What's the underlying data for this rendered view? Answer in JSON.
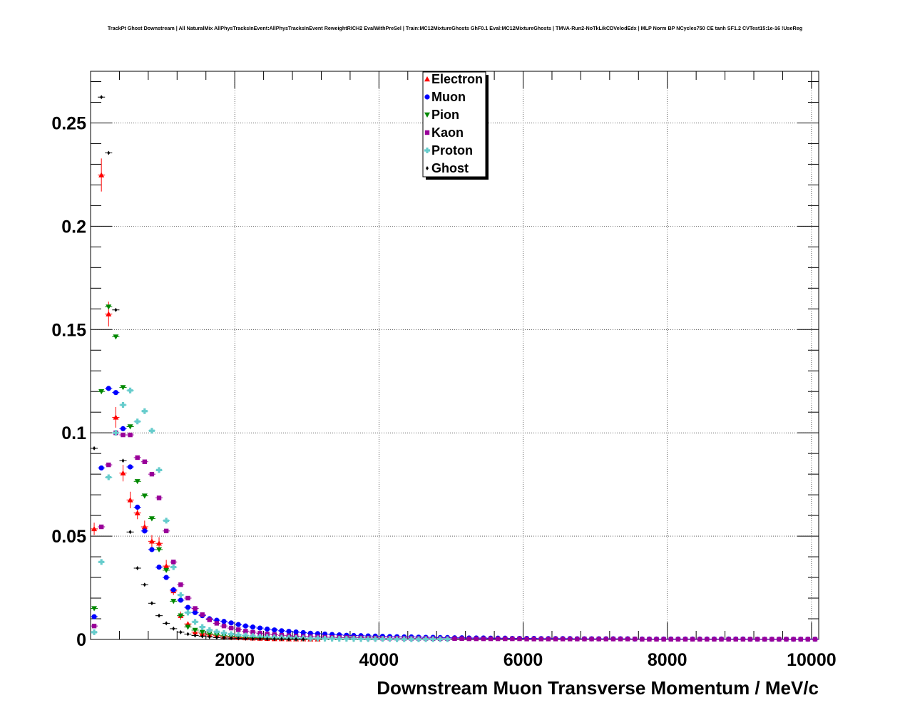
{
  "chart_data": {
    "type": "scatter",
    "title": "TrackPt Ghost Downstream | All NaturalMix AllPhysTracksInEvent:AllPhysTracksInEvent ReweightRICH2 EvalWithPreSel | Train:MC12MixtureGhosts GhF0.1 Eval:MC12MixtureGhosts | TMVA-Run2-NoTkLikCDVelodEdx | MLP Norm BP NCycles750 CE tanh SF1.2 CVTest15:1e-16 !UseReg",
    "xlabel": "Downstream Muon Transverse Momentum / MeV/c",
    "ylabel": "",
    "xlim": [
      0,
      10100
    ],
    "ylim": [
      0,
      0.275
    ],
    "x_ticks": [
      2000,
      4000,
      6000,
      8000,
      10000
    ],
    "x_tick_labels": [
      "2000",
      "4000",
      "6000",
      "8000",
      "10000"
    ],
    "y_ticks": [
      0,
      0.05,
      0.1,
      0.15,
      0.2,
      0.25
    ],
    "y_tick_labels": [
      "0",
      "0.05",
      "0.1",
      "0.15",
      "0.2",
      "0.25"
    ],
    "grid": true,
    "legend_position": "top-center",
    "bin_width": 100,
    "series": [
      {
        "name": "Electron",
        "color": "#ff0000",
        "marker": "triangle-up",
        "x": [
          50,
          150,
          250,
          350,
          450,
          550,
          650,
          750,
          850,
          950,
          1050,
          1150,
          1250,
          1350,
          1450,
          1550,
          1650,
          1750,
          1850,
          1950,
          2050,
          2150,
          2250,
          2350,
          2450,
          2550,
          2650,
          2750,
          2850,
          2950,
          3050,
          3150
        ],
        "y": [
          0.0535,
          0.2248,
          0.1575,
          0.1075,
          0.0805,
          0.0675,
          0.0612,
          0.0545,
          0.0475,
          0.0465,
          0.0355,
          0.0235,
          0.0115,
          0.0075,
          0.0035,
          0.0028,
          0.0022,
          0.0018,
          0.0014,
          0.0011,
          0.0009,
          0.0007,
          0.0006,
          0.0005,
          0.0004,
          0.0003,
          0.0003,
          0.0002,
          0.0002,
          0.0002,
          0.0001,
          0.0001
        ],
        "err": [
          0.003,
          0.008,
          0.006,
          0.005,
          0.004,
          0.004,
          0.003,
          0.003,
          0.003,
          0.003,
          0.003,
          0.002,
          0.002,
          0.001,
          0.001,
          0.001,
          0.001,
          0.0008,
          0.0007,
          0.0006,
          0.0005,
          0.0005,
          0.0004,
          0.0004,
          0.0003,
          0.0003,
          0.0003,
          0.0002,
          0.0002,
          0.0002,
          0.0002,
          0.0001
        ]
      },
      {
        "name": "Muon",
        "color": "#0000ff",
        "marker": "circle",
        "x": [
          50,
          150,
          250,
          350,
          450,
          550,
          650,
          750,
          850,
          950,
          1050,
          1150,
          1250,
          1350,
          1450,
          1550,
          1650,
          1750,
          1850,
          1950,
          2050,
          2150,
          2250,
          2350,
          2450,
          2550,
          2650,
          2750,
          2850,
          2950,
          3050,
          3150,
          3250,
          3350,
          3450,
          3550,
          3650,
          3750,
          3850,
          3950,
          4050,
          4150,
          4250,
          4350,
          4450,
          4550,
          4650,
          4750,
          4850,
          4950,
          5050,
          5150,
          5250,
          5350,
          5450,
          5550,
          5650,
          5750,
          5850,
          5950,
          6050,
          6150,
          6250,
          6350,
          6450,
          6550,
          6650,
          6750,
          6850,
          6950,
          7050,
          7150,
          7250,
          7350,
          7450,
          7550,
          7650,
          7750,
          7850,
          7950,
          8050,
          8150,
          8250,
          8350,
          8450,
          8550,
          8650,
          8750,
          8850,
          8950,
          9050,
          9150,
          9250,
          9350,
          9450,
          9550,
          9650,
          9750,
          9850,
          9950,
          10050
        ],
        "y": [
          0.011,
          0.083,
          0.1215,
          0.1195,
          0.102,
          0.0835,
          0.064,
          0.0525,
          0.0435,
          0.035,
          0.03,
          0.024,
          0.019,
          0.0155,
          0.013,
          0.0115,
          0.01,
          0.0093,
          0.0087,
          0.008,
          0.0072,
          0.0065,
          0.006,
          0.0055,
          0.005,
          0.0046,
          0.0042,
          0.0039,
          0.0036,
          0.0033,
          0.003,
          0.0028,
          0.0026,
          0.0024,
          0.0022,
          0.002,
          0.0019,
          0.0018,
          0.0017,
          0.0016,
          0.0015,
          0.0014,
          0.0013,
          0.0012,
          0.0012,
          0.0011,
          0.001,
          0.001,
          0.0009,
          0.0009,
          0.0008,
          0.0008,
          0.0007,
          0.0007,
          0.0007,
          0.0006,
          0.0006,
          0.0006,
          0.0005,
          0.0005,
          0.0005,
          0.0005,
          0.0004,
          0.0004,
          0.0004,
          0.0004,
          0.0004,
          0.0003,
          0.0003,
          0.0003,
          0.0003,
          0.0003,
          0.0003,
          0.0003,
          0.0003,
          0.0002,
          0.0002,
          0.0002,
          0.0002,
          0.0002,
          0.0002,
          0.0002,
          0.0002,
          0.0002,
          0.0002,
          0.0002,
          0.0002,
          0.0002,
          0.0002,
          0.0002,
          0.0002,
          0.0001,
          0.0001,
          0.0001,
          0.0001,
          0.0001,
          0.0001,
          0.0001,
          0.0001,
          0.0001,
          0.0001
        ],
        "err": []
      },
      {
        "name": "Pion",
        "color": "#008800",
        "marker": "triangle-down",
        "x": [
          50,
          150,
          250,
          350,
          450,
          550,
          650,
          750,
          850,
          950,
          1050,
          1150,
          1250,
          1350,
          1450,
          1550,
          1650,
          1750,
          1850,
          1950,
          2050,
          2150,
          2250,
          2350,
          2450,
          2550,
          2650,
          2750,
          2850,
          2950,
          3050,
          3150,
          3250,
          3350,
          3450,
          3550,
          3650,
          3750,
          3850,
          3950
        ],
        "y": [
          0.015,
          0.12,
          0.161,
          0.1465,
          0.122,
          0.103,
          0.0765,
          0.0695,
          0.0585,
          0.0435,
          0.0335,
          0.0185,
          0.0115,
          0.006,
          0.0045,
          0.0035,
          0.0027,
          0.0022,
          0.0018,
          0.0015,
          0.0012,
          0.001,
          0.0009,
          0.0008,
          0.0007,
          0.0006,
          0.0005,
          0.0004,
          0.0004,
          0.0003,
          0.0003,
          0.0003,
          0.0002,
          0.0002,
          0.0002,
          0.0002,
          0.0001,
          0.0001,
          0.0001,
          0.0001
        ],
        "err": []
      },
      {
        "name": "Kaon",
        "color": "#990099",
        "marker": "square",
        "x": [
          50,
          150,
          250,
          350,
          450,
          550,
          650,
          750,
          850,
          950,
          1050,
          1150,
          1250,
          1350,
          1450,
          1550,
          1650,
          1750,
          1850,
          1950,
          2050,
          2150,
          2250,
          2350,
          2450,
          2550,
          2650,
          2750,
          2850,
          2950,
          3050,
          3150,
          3250,
          3350,
          3450,
          3550,
          3650,
          3750,
          3850,
          3950,
          4050,
          4150,
          4250,
          4350,
          4450,
          4550,
          4650,
          4750,
          4850,
          4950,
          5050,
          5150,
          5250,
          5350,
          5450,
          5550,
          5650,
          5750,
          5850,
          5950,
          6050,
          6150,
          6250,
          6350,
          6450,
          6550,
          6650,
          6750,
          6850,
          6950,
          7050,
          7150,
          7250,
          7350,
          7450,
          7550,
          7650,
          7750,
          7850,
          7950,
          8050,
          8150,
          8250,
          8350,
          8450,
          8550,
          8650,
          8750,
          8850,
          8950,
          9050,
          9150,
          9250,
          9350,
          9450,
          9550,
          9650,
          9750,
          9850,
          9950,
          10050
        ],
        "y": [
          0.0065,
          0.0545,
          0.0845,
          0.1,
          0.099,
          0.099,
          0.088,
          0.086,
          0.08,
          0.0685,
          0.0525,
          0.0375,
          0.0265,
          0.02,
          0.015,
          0.012,
          0.0095,
          0.0078,
          0.0065,
          0.0055,
          0.0047,
          0.004,
          0.0035,
          0.003,
          0.0026,
          0.0023,
          0.002,
          0.0018,
          0.0016,
          0.0014,
          0.0013,
          0.0012,
          0.0011,
          0.001,
          0.0009,
          0.0009,
          0.0008,
          0.0008,
          0.0007,
          0.0007,
          0.0006,
          0.0006,
          0.0006,
          0.0005,
          0.0005,
          0.0005,
          0.0005,
          0.0004,
          0.0004,
          0.0004,
          0.0004,
          0.0004,
          0.0003,
          0.0003,
          0.0003,
          0.0003,
          0.0003,
          0.0003,
          0.0003,
          0.0003,
          0.0002,
          0.0002,
          0.0002,
          0.0002,
          0.0002,
          0.0002,
          0.0002,
          0.0002,
          0.0002,
          0.0002,
          0.0002,
          0.0002,
          0.0002,
          0.0002,
          0.0002,
          0.0002,
          0.0001,
          0.0001,
          0.0001,
          0.0001,
          0.0001,
          0.0001,
          0.0001,
          0.0001,
          0.0001,
          0.0001,
          0.0001,
          0.0001,
          0.0001,
          0.0001,
          0.0001,
          0.0001,
          0.0001,
          0.0001,
          0.0001,
          0.0001,
          0.0001,
          0.0001,
          0.0001,
          0.0001,
          0.0001
        ],
        "err": []
      },
      {
        "name": "Proton",
        "color": "#66cccc",
        "marker": "cross",
        "x": [
          50,
          150,
          250,
          350,
          450,
          550,
          650,
          750,
          850,
          950,
          1050,
          1150,
          1250,
          1350,
          1450,
          1550,
          1650,
          1750,
          1850,
          1950,
          2050,
          2150,
          2250,
          2350,
          2450,
          2550,
          2650,
          2750,
          2850,
          2950,
          3050,
          3150,
          3250,
          3350,
          3450,
          3550,
          3650,
          3750,
          3850,
          3950,
          4050,
          4150,
          4250,
          4350,
          4450,
          4550,
          4650,
          4750,
          4850,
          4950
        ],
        "y": [
          0.0035,
          0.0375,
          0.0785,
          0.1,
          0.1135,
          0.1205,
          0.1055,
          0.1105,
          0.101,
          0.082,
          0.0575,
          0.035,
          0.0215,
          0.013,
          0.0085,
          0.006,
          0.0045,
          0.0037,
          0.0031,
          0.0026,
          0.0022,
          0.0019,
          0.0016,
          0.0014,
          0.0012,
          0.001,
          0.0009,
          0.0008,
          0.0007,
          0.0006,
          0.0005,
          0.0005,
          0.0004,
          0.0004,
          0.0003,
          0.0003,
          0.0003,
          0.0002,
          0.0002,
          0.0002,
          0.0002,
          0.0002,
          0.0001,
          0.0001,
          0.0001,
          0.0001,
          0.0001,
          0.0001,
          0.0001,
          0.0001
        ],
        "err": []
      },
      {
        "name": "Ghost",
        "color": "#000000",
        "marker": "diamond",
        "x": [
          50,
          150,
          250,
          350,
          450,
          550,
          650,
          750,
          850,
          950,
          1050,
          1150,
          1250,
          1350,
          1450,
          1550,
          1650,
          1750,
          1850,
          1950,
          2050,
          2150,
          2250,
          2350,
          2450,
          2550,
          2650,
          2750,
          2850,
          2950
        ],
        "y": [
          0.0925,
          0.2625,
          0.2355,
          0.1595,
          0.0865,
          0.052,
          0.0345,
          0.0265,
          0.0175,
          0.0115,
          0.0078,
          0.0052,
          0.0035,
          0.0026,
          0.0019,
          0.0015,
          0.0012,
          0.0009,
          0.0007,
          0.0006,
          0.0005,
          0.0004,
          0.0003,
          0.0003,
          0.0002,
          0.0002,
          0.0002,
          0.0001,
          0.0001,
          0.0001
        ],
        "err": []
      }
    ]
  }
}
